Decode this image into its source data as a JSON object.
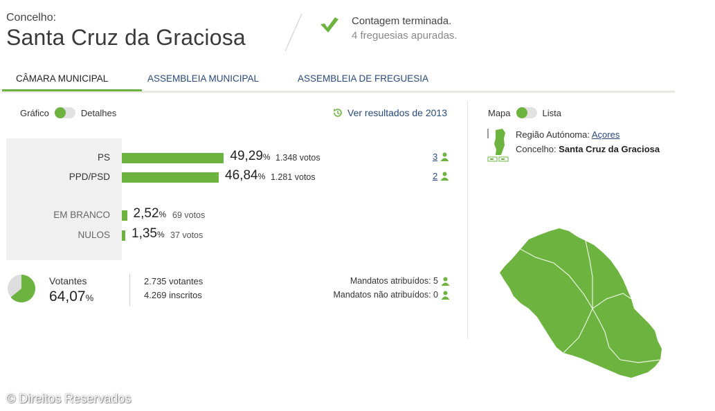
{
  "header": {
    "label": "Concelho:",
    "title": "Santa Cruz da Graciosa",
    "status_main": "Contagem terminada.",
    "status_sub": "4 freguesias apuradas."
  },
  "tabs": [
    {
      "label": "CÂMARA MUNICIPAL",
      "active": true
    },
    {
      "label": "ASSEMBLEIA MUNICIPAL",
      "active": false
    },
    {
      "label": "ASSEMBLEIA DE FREGUESIA",
      "active": false
    }
  ],
  "view_toggle": {
    "left": "Gráfico",
    "right": "Detalhes",
    "selected": "Gráfico"
  },
  "prev_results_link": "Ver resultados de 2013",
  "map_toggle": {
    "left": "Mapa",
    "right": "Lista",
    "selected": "Mapa"
  },
  "region": {
    "region_label": "Região Autónoma:",
    "region_link": "Açores",
    "concelho_label": "Concelho:",
    "concelho_value": "Santa Cruz da Graciosa"
  },
  "colors": {
    "accent": "#6cb33f",
    "link": "#2a4a7a",
    "panel_bg": "#f0f0f0"
  },
  "chart_data": {
    "type": "bar",
    "categories": [
      "PS",
      "PPD/PSD",
      "EM BRANCO",
      "NULOS"
    ],
    "values": [
      49.29,
      46.84,
      2.52,
      1.35
    ],
    "pct_display": [
      "49,29",
      "46,84",
      "2,52",
      "1,35"
    ],
    "pct_unit": "%",
    "votes": [
      "1.348 votos",
      "1.281 votos",
      "69 votos",
      "37 votos"
    ],
    "seats": [
      "3",
      "2"
    ]
  },
  "turnout": {
    "label": "Votantes",
    "value": "64,07",
    "unit": "%",
    "fraction": 0.6407,
    "voters": "2.735 votantes",
    "registered": "4.269 inscritos"
  },
  "mandates": {
    "assigned": "Mandatos atribuídos: 5",
    "unassigned": "Mandatos não atribuídos: 0"
  },
  "watermark": "© Direitos Reservados"
}
